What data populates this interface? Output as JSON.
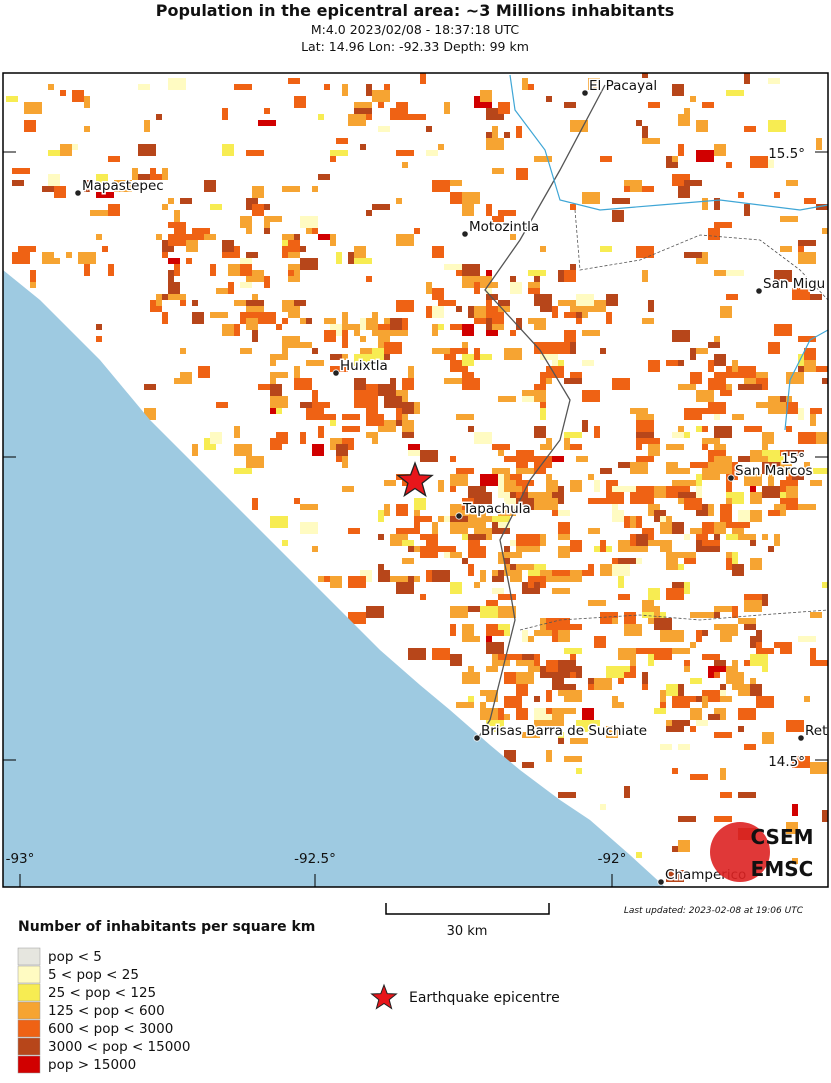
{
  "header": {
    "title": "Population in the epicentral area: ~3 Millions inhabitants",
    "line1": "M:4.0 2023/02/08 - 18:37:18 UTC",
    "line2": "Lat: 14.96 Lon: -92.33 Depth: 99 km"
  },
  "cities": [
    {
      "label": "El Pacayal"
    },
    {
      "label": "Mapastepec"
    },
    {
      "label": "Motozintla"
    },
    {
      "label": "San Migu"
    },
    {
      "label": "Huixtla"
    },
    {
      "label": "San Marcos"
    },
    {
      "label": "Tapachula"
    },
    {
      "label": "Brisas Barra de Suchiate"
    },
    {
      "label": "Ret"
    },
    {
      "label": "Champerico"
    }
  ],
  "lat_ticks": [
    "15.5°",
    "15°",
    "14.5°"
  ],
  "lon_ticks": [
    "-93°",
    "-92.5°",
    "-92°"
  ],
  "logo": {
    "top": "CSEM",
    "bottom": "EMSC"
  },
  "scale_bar": "30 km",
  "last_updated": "Last updated: 2023-02-08 at 19:06 UTC",
  "legend": {
    "title": "Number of inhabitants per square km",
    "items": [
      {
        "label": "pop < 5",
        "color": "#e6e6df"
      },
      {
        "label": "5 < pop < 25",
        "color": "#fffbc2"
      },
      {
        "label": "25 < pop < 125",
        "color": "#f7ec52"
      },
      {
        "label": "125 < pop < 600",
        "color": "#f6a432"
      },
      {
        "label": "600 < pop < 3000",
        "color": "#ef6214"
      },
      {
        "label": "3000 < pop < 15000",
        "color": "#b7461a"
      },
      {
        "label": "pop > 15000",
        "color": "#d10000"
      }
    ]
  },
  "epicentre_label": "Earthquake epicentre"
}
